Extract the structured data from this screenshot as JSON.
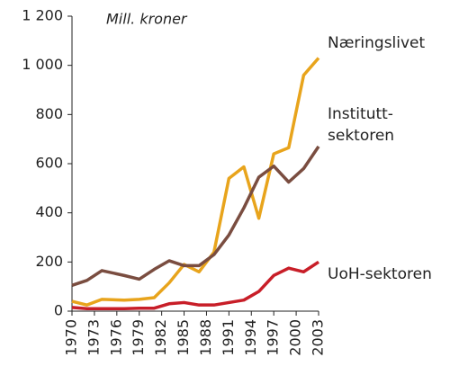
{
  "chart_data": {
    "type": "line",
    "annotation": "Mill. kroner",
    "x": [
      1970,
      1972,
      1974,
      1977,
      1979,
      1981,
      1983,
      1985,
      1987,
      1989,
      1991,
      1993,
      1995,
      1997,
      1999,
      2001,
      2003
    ],
    "series": [
      {
        "name": "Næringslivet",
        "color": "#e8a41c",
        "values": [
          40,
          25,
          48,
          45,
          48,
          55,
          115,
          190,
          160,
          240,
          540,
          587,
          378,
          640,
          665,
          960,
          1030
        ]
      },
      {
        "name": "Institutt-\nsektoren",
        "color": "#7a4d40",
        "values": [
          105,
          125,
          165,
          145,
          130,
          170,
          205,
          185,
          185,
          230,
          310,
          420,
          545,
          590,
          525,
          580,
          670
        ]
      },
      {
        "name": "UoH-sektoren",
        "color": "#c81e28",
        "values": [
          15,
          10,
          10,
          10,
          12,
          12,
          30,
          35,
          25,
          25,
          35,
          45,
          80,
          145,
          175,
          160,
          200
        ]
      }
    ],
    "xlim": [
      1970,
      2003
    ],
    "xticks": [
      1970,
      1973,
      1976,
      1979,
      1982,
      1985,
      1988,
      1991,
      1994,
      1997,
      2000,
      2003
    ],
    "ylim": [
      0,
      1200
    ],
    "yticks": [
      0,
      200,
      400,
      600,
      800,
      {
        "value": 1000,
        "label": "1 000"
      },
      {
        "value": 1200,
        "label": "1 200"
      }
    ]
  }
}
